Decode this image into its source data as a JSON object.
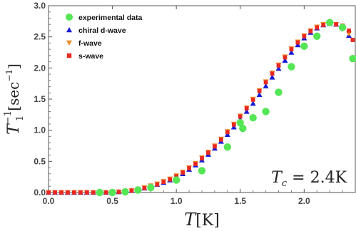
{
  "chart_data": {
    "type": "scatter",
    "xlim": [
      0,
      2.4
    ],
    "ylim": [
      0,
      3.0
    ],
    "x_ticks": [
      "0.0",
      "0.5",
      "1.0",
      "1.5",
      "2.0"
    ],
    "x_tick_values": [
      0,
      0.5,
      1.0,
      1.5,
      2.0
    ],
    "y_ticks": [
      "0.0",
      "0.5",
      "1.0",
      "1.5",
      "2.0",
      "2.5",
      "3.0"
    ],
    "y_tick_values": [
      0,
      0.5,
      1.0,
      1.5,
      2.0,
      2.5,
      3.0
    ],
    "grid": false,
    "legend_position": "top-left",
    "annotation": "T_c = 2.4K",
    "series": [
      {
        "name": "experimental data",
        "marker": "circle",
        "color": "#55e655",
        "x": [
          0.4,
          0.5,
          0.6,
          0.7,
          0.8,
          1.0,
          1.2,
          1.4,
          1.5,
          1.52,
          1.6,
          1.7,
          1.8,
          1.9,
          2.0,
          2.1,
          2.2,
          2.3,
          2.38
        ],
        "y": [
          0.0,
          0.0,
          0.01,
          0.04,
          0.08,
          0.2,
          0.35,
          0.73,
          1.12,
          1.03,
          1.2,
          1.3,
          1.61,
          2.02,
          2.35,
          2.51,
          2.73,
          2.65,
          2.15
        ]
      },
      {
        "name": "chiral d-wave",
        "marker": "triangle-up",
        "color": "#1a1ad6",
        "x": [
          0.0,
          0.05,
          0.1,
          0.15,
          0.2,
          0.25,
          0.3,
          0.35,
          0.4,
          0.45,
          0.5,
          0.55,
          0.6,
          0.65,
          0.7,
          0.75,
          0.8,
          0.85,
          0.9,
          0.95,
          1.0,
          1.05,
          1.1,
          1.15,
          1.2,
          1.25,
          1.3,
          1.35,
          1.4,
          1.45,
          1.5,
          1.55,
          1.6,
          1.65,
          1.7,
          1.75,
          1.8,
          1.85,
          1.9,
          1.95,
          2.0,
          2.05,
          2.1,
          2.15,
          2.2,
          2.25,
          2.3,
          2.35
        ],
        "y": [
          0.0,
          0.0,
          0.0,
          0.0,
          0.0,
          0.0,
          0.0,
          0.0,
          0.0,
          0.0,
          0.0,
          0.01,
          0.02,
          0.03,
          0.05,
          0.07,
          0.1,
          0.13,
          0.16,
          0.2,
          0.25,
          0.3,
          0.37,
          0.44,
          0.52,
          0.61,
          0.71,
          0.82,
          0.93,
          1.05,
          1.17,
          1.3,
          1.43,
          1.57,
          1.71,
          1.85,
          1.99,
          2.12,
          2.25,
          2.37,
          2.48,
          2.57,
          2.64,
          2.69,
          2.71,
          2.7,
          2.65,
          2.52
        ]
      },
      {
        "name": "f-wave",
        "marker": "triangle-down",
        "color": "#f08c28",
        "x": [
          0.0,
          0.05,
          0.1,
          0.15,
          0.2,
          0.25,
          0.3,
          0.35,
          0.4,
          0.45,
          0.5,
          0.55,
          0.6,
          0.65,
          0.7,
          0.75,
          0.8,
          0.85,
          0.9,
          0.95,
          1.0,
          1.05,
          1.1,
          1.15,
          1.2,
          1.25,
          1.3,
          1.35,
          1.4,
          1.45,
          1.5,
          1.55,
          1.6,
          1.65,
          1.7,
          1.75,
          1.8,
          1.85,
          1.9,
          1.95,
          2.0,
          2.05,
          2.1,
          2.15,
          2.2,
          2.25,
          2.3,
          2.35
        ],
        "y": [
          0.0,
          0.0,
          0.0,
          0.0,
          0.0,
          0.0,
          0.0,
          0.0,
          0.0,
          0.0,
          0.01,
          0.01,
          0.02,
          0.03,
          0.05,
          0.08,
          0.11,
          0.14,
          0.18,
          0.22,
          0.27,
          0.33,
          0.4,
          0.47,
          0.56,
          0.65,
          0.75,
          0.86,
          0.98,
          1.1,
          1.23,
          1.36,
          1.5,
          1.64,
          1.78,
          1.92,
          2.05,
          2.18,
          2.31,
          2.42,
          2.52,
          2.6,
          2.66,
          2.7,
          2.72,
          2.7,
          2.66,
          2.55
        ]
      },
      {
        "name": "s-wave",
        "marker": "square",
        "color": "#e8281e",
        "x": [
          0.0,
          0.05,
          0.1,
          0.15,
          0.2,
          0.25,
          0.3,
          0.35,
          0.4,
          0.45,
          0.5,
          0.55,
          0.6,
          0.65,
          0.7,
          0.75,
          0.8,
          0.85,
          0.9,
          0.95,
          1.0,
          1.05,
          1.1,
          1.15,
          1.2,
          1.25,
          1.3,
          1.35,
          1.4,
          1.45,
          1.5,
          1.55,
          1.6,
          1.65,
          1.7,
          1.75,
          1.8,
          1.85,
          1.9,
          1.95,
          2.0,
          2.05,
          2.1,
          2.15,
          2.2,
          2.25,
          2.3,
          2.35,
          2.38
        ],
        "y": [
          0.0,
          0.0,
          0.0,
          0.0,
          0.0,
          0.0,
          0.0,
          0.0,
          0.0,
          0.0,
          0.0,
          0.01,
          0.02,
          0.03,
          0.05,
          0.07,
          0.1,
          0.13,
          0.17,
          0.21,
          0.26,
          0.32,
          0.39,
          0.46,
          0.55,
          0.64,
          0.74,
          0.85,
          0.97,
          1.09,
          1.22,
          1.35,
          1.49,
          1.63,
          1.77,
          1.91,
          2.04,
          2.17,
          2.3,
          2.41,
          2.51,
          2.59,
          2.65,
          2.69,
          2.71,
          2.7,
          2.68,
          2.6,
          2.45
        ]
      }
    ]
  }
}
